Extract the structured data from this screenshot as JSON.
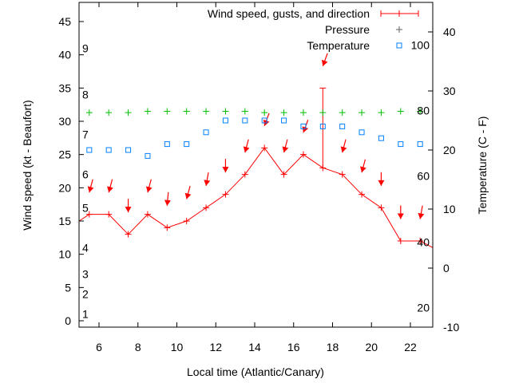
{
  "chart_data": {
    "type": "line",
    "title": "",
    "xlabel": "Local time (Atlantic/Canary)",
    "ylabel": "Wind speed (kt - Beaufort)",
    "y2label": "Temperature (C - F)",
    "xlim": [
      5,
      23
    ],
    "ylim": [
      -1,
      48
    ],
    "y2lim": [
      -10,
      45
    ],
    "xticks": [
      6,
      8,
      10,
      12,
      14,
      16,
      18,
      20,
      22
    ],
    "yticks": [
      0,
      5,
      10,
      15,
      20,
      25,
      30,
      35,
      40,
      45
    ],
    "y2ticks": [
      -10,
      0,
      10,
      20,
      30,
      40
    ],
    "grid": false,
    "legend": {
      "placement": "top-right",
      "entries": [
        "Wind speed, gusts, and direction",
        "Pressure",
        "Temperature"
      ]
    },
    "beaufort_labels": [
      {
        "label": "1",
        "kt": 1
      },
      {
        "label": "2",
        "kt": 4
      },
      {
        "label": "3",
        "kt": 7
      },
      {
        "label": "4",
        "kt": 11
      },
      {
        "label": "5",
        "kt": 17
      },
      {
        "label": "6",
        "kt": 22
      },
      {
        "label": "7",
        "kt": 28
      },
      {
        "label": "8",
        "kt": 34
      },
      {
        "label": "9",
        "kt": 41
      }
    ],
    "fahrenheit_labels": [
      {
        "label": "20",
        "c": -6.7
      },
      {
        "label": "40",
        "c": 4.4
      },
      {
        "label": "60",
        "c": 15.6
      },
      {
        "label": "80",
        "c": 26.7
      },
      {
        "label": "100",
        "c": 37.8
      }
    ],
    "x": [
      5.5,
      6.5,
      7.5,
      8.5,
      9.5,
      10.5,
      11.5,
      12.5,
      13.5,
      14.5,
      15.5,
      16.5,
      17.5,
      18.5,
      19.5,
      20.5,
      21.5,
      22.5
    ],
    "series": [
      {
        "name": "Wind speed, gusts, and direction",
        "axis": "y",
        "color": "#ff0000",
        "values": [
          16,
          16,
          13,
          16,
          14,
          15,
          17,
          19,
          22,
          26,
          22,
          25,
          23,
          22,
          19,
          17,
          12,
          12
        ],
        "line_ends": {
          "x5": 15,
          "x23": 11
        },
        "gusts": [
          null,
          null,
          null,
          null,
          null,
          null,
          null,
          null,
          null,
          null,
          null,
          null,
          35,
          null,
          null,
          null,
          null,
          null
        ],
        "direction_deg": [
          15,
          15,
          0,
          15,
          5,
          15,
          10,
          0,
          15,
          20,
          15,
          20,
          20,
          15,
          15,
          0,
          0,
          10
        ]
      },
      {
        "name": "Pressure",
        "axis": "y",
        "color": "#00c000",
        "values": [
          31.3,
          31.3,
          31.3,
          31.5,
          31.5,
          31.5,
          31.5,
          31.5,
          31.5,
          31.3,
          31.3,
          31.3,
          31.3,
          31.3,
          31.3,
          31.3,
          31.5,
          31.5
        ]
      },
      {
        "name": "Temperature",
        "axis": "y2",
        "color": "#0080ff",
        "values": [
          20,
          20,
          20,
          19,
          21,
          21,
          23,
          25,
          25,
          25,
          25,
          24,
          24,
          24,
          23,
          22,
          21,
          21
        ]
      }
    ]
  }
}
